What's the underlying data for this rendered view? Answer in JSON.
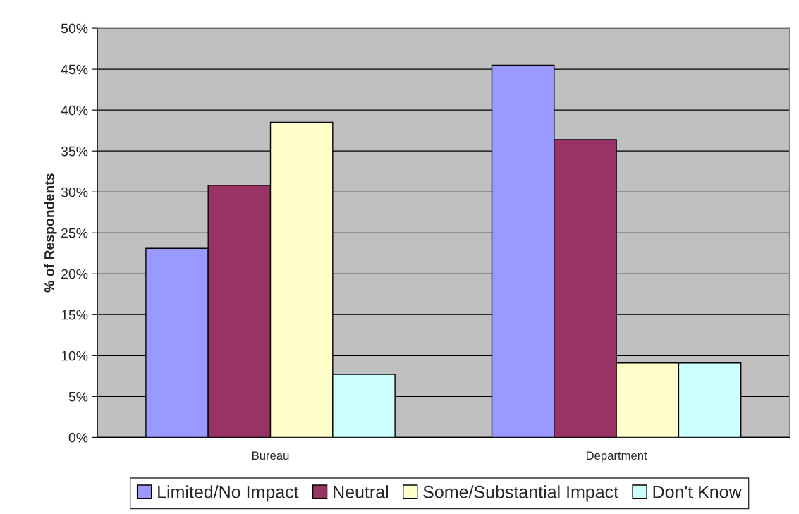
{
  "chart_data": {
    "type": "bar",
    "ylabel": "% of Respondents",
    "categories": [
      "Bureau",
      "Department"
    ],
    "series": [
      {
        "name": "Limited/No Impact",
        "color": "#9999ff",
        "values": [
          23.1,
          45.5
        ]
      },
      {
        "name": "Neutral",
        "color": "#993366",
        "values": [
          30.8,
          36.4
        ]
      },
      {
        "name": "Some/Substantial Impact",
        "color": "#ffffcc",
        "values": [
          38.5,
          9.1
        ]
      },
      {
        "name": "Don't Know",
        "color": "#ccffff",
        "values": [
          7.7,
          9.1
        ]
      }
    ],
    "ylim": [
      0,
      50
    ],
    "yticks": [
      {
        "value": 0,
        "label": "0%"
      },
      {
        "value": 5,
        "label": "5%"
      },
      {
        "value": 10,
        "label": "10%"
      },
      {
        "value": 15,
        "label": "15%"
      },
      {
        "value": 20,
        "label": "20%"
      },
      {
        "value": 25,
        "label": "25%"
      },
      {
        "value": 30,
        "label": "30%"
      },
      {
        "value": 35,
        "label": "35%"
      },
      {
        "value": 40,
        "label": "40%"
      },
      {
        "value": 45,
        "label": "45%"
      },
      {
        "value": 50,
        "label": "50%"
      }
    ],
    "grid": "y",
    "legend": "bottom"
  }
}
